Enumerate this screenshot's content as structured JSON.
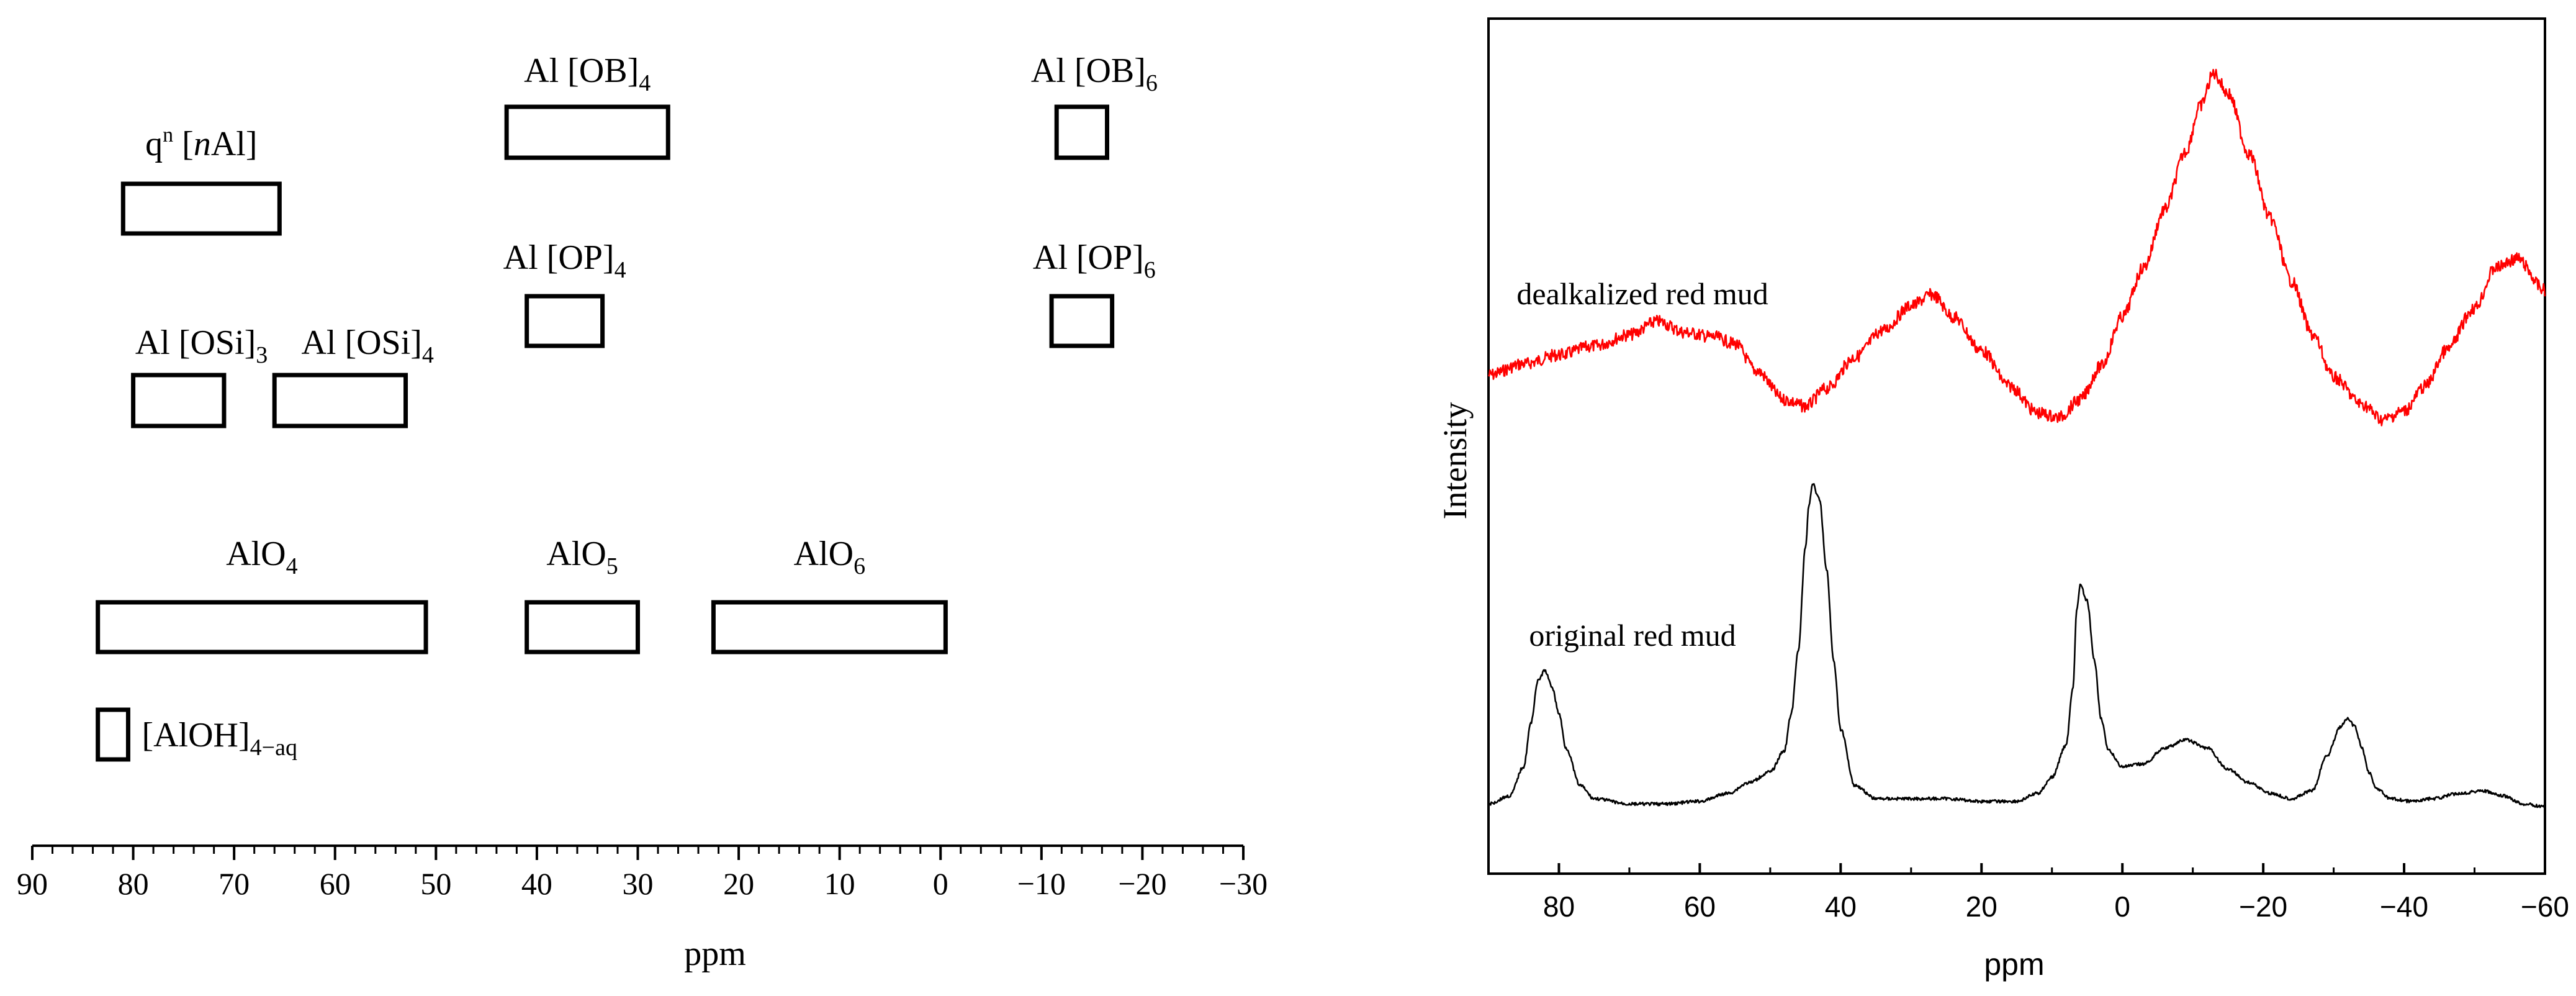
{
  "chart_data": [
    {
      "type": "range-chart",
      "title": "",
      "xlabel": "ppm",
      "xlim": [
        90,
        -30
      ],
      "xticks": [
        90,
        80,
        70,
        60,
        50,
        40,
        30,
        20,
        10,
        0,
        -10,
        -20,
        -30
      ],
      "xtick_labels": [
        "90",
        "80",
        "70",
        "60",
        "50",
        "40",
        "30",
        "20",
        "10",
        "0",
        "−10",
        "−20",
        "−30"
      ],
      "ranges": [
        {
          "id": "qn-nAl",
          "label": "q",
          "sup": "n",
          "label_rest": " [",
          "label_italic": "n",
          "label_end": "Al]",
          "from": 81,
          "to": 65.5,
          "row": 2
        },
        {
          "id": "al-ob4",
          "label": "Al [OB]",
          "sub": "4",
          "from": 43,
          "to": 27,
          "row": 1
        },
        {
          "id": "al-ob6",
          "label": "Al [OB]",
          "sub": "6",
          "from": -11.5,
          "to": -16.5,
          "row": 1
        },
        {
          "id": "al-op4",
          "label": "Al [OP]",
          "sub": "4",
          "from": 41,
          "to": 33.5,
          "row": 3
        },
        {
          "id": "al-op6",
          "label": "Al [OP]",
          "sub": "6",
          "from": -11,
          "to": -17,
          "row": 3
        },
        {
          "id": "al-osi3",
          "label": "Al [OSi]",
          "sub": "3",
          "from": 80,
          "to": 71,
          "row": 4
        },
        {
          "id": "al-osi4",
          "label": "Al [OSi]",
          "sub": "4",
          "from": 66,
          "to": 53,
          "row": 4
        },
        {
          "id": "alo4",
          "label": "AlO",
          "sub": "4",
          "from": 83.5,
          "to": 51,
          "row": 5
        },
        {
          "id": "alo5",
          "label": "AlO",
          "sub": "5",
          "from": 41,
          "to": 30,
          "row": 5
        },
        {
          "id": "alo6",
          "label": "AlO",
          "sub": "6",
          "from": 22.5,
          "to": -0.5,
          "row": 5
        },
        {
          "id": "aloh-aq",
          "label": "[AlOH]",
          "sub": "4−aq",
          "from": 83.5,
          "to": 80.5,
          "row": 6
        }
      ]
    },
    {
      "type": "line",
      "title": "",
      "xlabel": "ppm",
      "ylabel": "Intensity",
      "xlim": [
        90,
        -60
      ],
      "xticks": [
        80,
        60,
        40,
        20,
        0,
        -20,
        -40,
        -60
      ],
      "xtick_labels": [
        "80",
        "60",
        "40",
        "20",
        "0",
        "−20",
        "−40",
        "−60"
      ],
      "yticks": [],
      "series": [
        {
          "name": "dealkalized red mud",
          "color": "#ff0000",
          "x": [
            90,
            85,
            80,
            75,
            70,
            66,
            62,
            58,
            55,
            52,
            48,
            45,
            42,
            38,
            34,
            30,
            27,
            24,
            20,
            16,
            12,
            9,
            6,
            3,
            0,
            -3,
            -6,
            -9,
            -11,
            -13,
            -15,
            -18,
            -21,
            -24,
            -27,
            -30,
            -34,
            -37,
            -40,
            -43,
            -46,
            -50,
            -53,
            -56,
            -60
          ],
          "y": [
            0.3,
            0.35,
            0.39,
            0.43,
            0.48,
            0.54,
            0.49,
            0.47,
            0.44,
            0.32,
            0.19,
            0.16,
            0.24,
            0.38,
            0.5,
            0.61,
            0.66,
            0.56,
            0.41,
            0.25,
            0.13,
            0.11,
            0.19,
            0.34,
            0.56,
            0.78,
            1.04,
            1.3,
            1.5,
            1.65,
            1.56,
            1.29,
            1.0,
            0.72,
            0.48,
            0.29,
            0.17,
            0.1,
            0.14,
            0.25,
            0.41,
            0.6,
            0.78,
            0.82,
            0.68
          ]
        },
        {
          "name": "original red mud",
          "color": "#000000",
          "x": [
            90,
            87,
            85,
            84,
            83,
            82,
            81,
            80,
            79,
            77,
            75,
            70,
            65,
            60,
            56,
            53,
            50,
            48,
            47,
            46,
            45,
            44.5,
            44,
            43,
            42,
            41,
            40,
            38,
            35,
            30,
            25,
            20,
            15,
            12,
            10,
            8,
            7,
            6.5,
            6,
            5,
            4,
            3,
            2,
            0,
            -3,
            -6,
            -9,
            -12,
            -15,
            -18,
            -21,
            -24,
            -27,
            -29,
            -31,
            -32,
            -33,
            -34,
            -35,
            -36,
            -38,
            -41,
            -44,
            -48,
            -51,
            -54,
            -57,
            -60
          ],
          "y": [
            0.04,
            0.07,
            0.18,
            0.34,
            0.5,
            0.54,
            0.48,
            0.38,
            0.25,
            0.11,
            0.06,
            0.04,
            0.04,
            0.05,
            0.08,
            0.12,
            0.16,
            0.24,
            0.38,
            0.62,
            1.0,
            1.16,
            1.24,
            1.18,
            0.92,
            0.58,
            0.32,
            0.11,
            0.06,
            0.06,
            0.06,
            0.05,
            0.05,
            0.08,
            0.14,
            0.26,
            0.48,
            0.76,
            0.86,
            0.8,
            0.58,
            0.36,
            0.24,
            0.18,
            0.19,
            0.25,
            0.28,
            0.25,
            0.17,
            0.12,
            0.08,
            0.06,
            0.09,
            0.22,
            0.33,
            0.36,
            0.33,
            0.25,
            0.16,
            0.1,
            0.06,
            0.05,
            0.06,
            0.08,
            0.09,
            0.07,
            0.04,
            0.03
          ]
        }
      ],
      "annotations": [
        {
          "text": "dealkalized red mud",
          "x": 86,
          "series": "dealkalized red mud"
        },
        {
          "text": "original red mud",
          "x": 86,
          "series": "original red mud"
        }
      ]
    }
  ]
}
